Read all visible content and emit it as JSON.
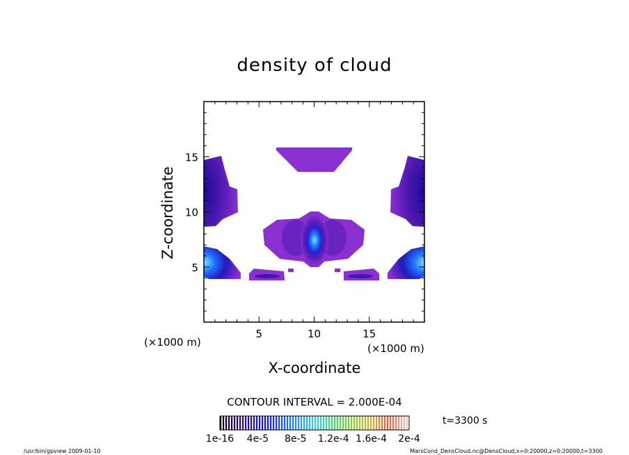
{
  "chart_data": {
    "type": "heatmap",
    "title": "density of cloud",
    "xlabel": "X-coordinate",
    "ylabel": "Z-coordinate",
    "x_unit": "(×1000 m)",
    "y_unit": "(×1000 m)",
    "xlim": [
      0,
      20
    ],
    "ylim": [
      0,
      20
    ],
    "x_ticks": [
      "5",
      "10",
      "15"
    ],
    "y_ticks": [
      "5",
      "10",
      "15"
    ],
    "contour_interval": "CONTOUR INTERVAL = 2.000E-04",
    "time": "t=3300 s",
    "colorbar_labels": [
      "1e-16",
      "4e-5",
      "8e-5",
      "1.2e-4",
      "1.6e-4",
      "2e-4"
    ],
    "colorbar_range": [
      0,
      0.0002
    ],
    "grid": false,
    "regions": [
      {
        "name": "upper band",
        "x": [
          7,
          13.5
        ],
        "z": [
          13.5,
          15.8
        ],
        "peak": 2e-05
      },
      {
        "name": "left edge upper",
        "x": [
          0,
          3.1
        ],
        "z": [
          8.6,
          15.0
        ],
        "peak": 8e-05
      },
      {
        "name": "right edge upper",
        "x": [
          16.9,
          20
        ],
        "z": [
          8.6,
          15.0
        ],
        "peak": 8e-05
      },
      {
        "name": "center cell",
        "x": [
          5.3,
          14.7
        ],
        "z": [
          5.5,
          10.0
        ],
        "peak": 0.00013
      },
      {
        "name": "left edge lower",
        "x": [
          0,
          3.3
        ],
        "z": [
          3.8,
          6.8
        ],
        "peak": 0.00012
      },
      {
        "name": "right edge lower",
        "x": [
          16.7,
          20
        ],
        "z": [
          3.8,
          6.8
        ],
        "peak": 0.00012
      },
      {
        "name": "left thin strip",
        "x": [
          4.1,
          7.4
        ],
        "z": [
          3.8,
          4.4
        ],
        "peak": 4e-05
      },
      {
        "name": "right thin strip",
        "x": [
          12.6,
          15.9
        ],
        "z": [
          3.8,
          4.4
        ],
        "peak": 4e-05
      }
    ]
  },
  "footer": {
    "left": "/usr/bin/gpview   2009-01-10",
    "right": "MarsCond_DensCloud.nc@DensCloud,x=0:20000,z=0:20000,t=3300"
  }
}
